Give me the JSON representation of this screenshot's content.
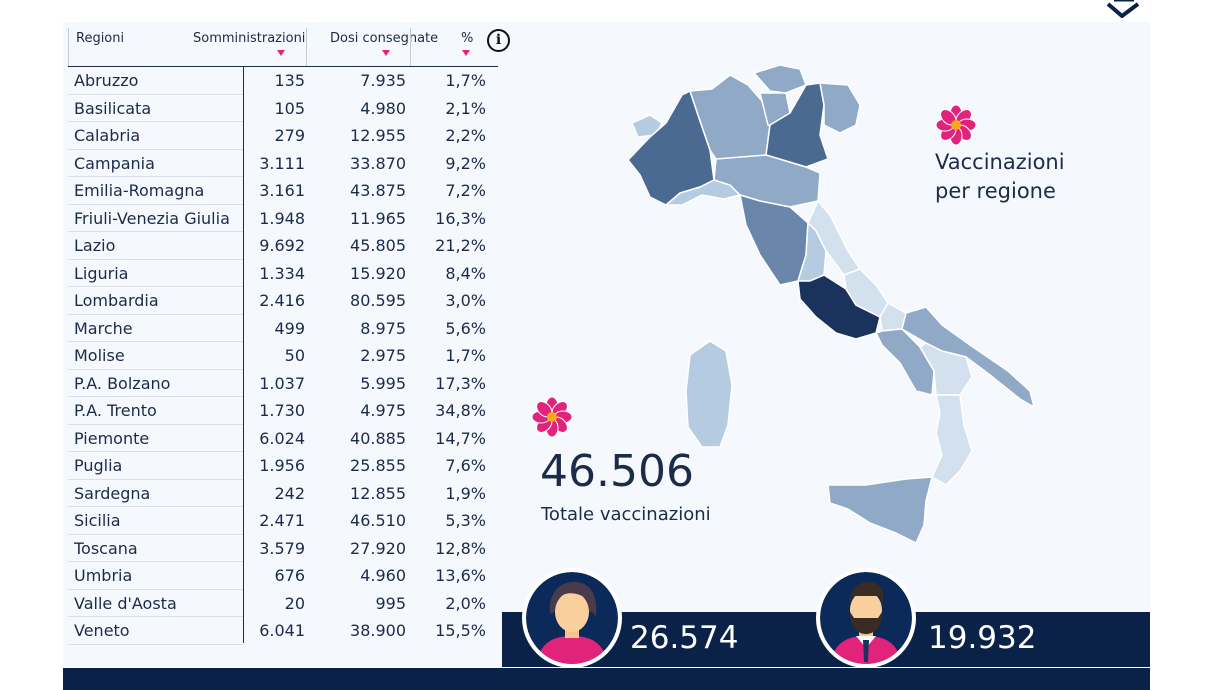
{
  "table": {
    "headers": {
      "region": "Regioni",
      "administrations": "Somministrazioni",
      "delivered": "Dosi consegnate",
      "percent": "%"
    },
    "rows": [
      {
        "region": "Abruzzo",
        "administrations": "135",
        "delivered": "7.935",
        "percent": "1,7%"
      },
      {
        "region": "Basilicata",
        "administrations": "105",
        "delivered": "4.980",
        "percent": "2,1%"
      },
      {
        "region": "Calabria",
        "administrations": "279",
        "delivered": "12.955",
        "percent": "2,2%"
      },
      {
        "region": "Campania",
        "administrations": "3.111",
        "delivered": "33.870",
        "percent": "9,2%"
      },
      {
        "region": "Emilia-Romagna",
        "administrations": "3.161",
        "delivered": "43.875",
        "percent": "7,2%"
      },
      {
        "region": "Friuli-Venezia Giulia",
        "administrations": "1.948",
        "delivered": "11.965",
        "percent": "16,3%"
      },
      {
        "region": "Lazio",
        "administrations": "9.692",
        "delivered": "45.805",
        "percent": "21,2%"
      },
      {
        "region": "Liguria",
        "administrations": "1.334",
        "delivered": "15.920",
        "percent": "8,4%"
      },
      {
        "region": "Lombardia",
        "administrations": "2.416",
        "delivered": "80.595",
        "percent": "3,0%"
      },
      {
        "region": "Marche",
        "administrations": "499",
        "delivered": "8.975",
        "percent": "5,6%"
      },
      {
        "region": "Molise",
        "administrations": "50",
        "delivered": "2.975",
        "percent": "1,7%"
      },
      {
        "region": "P.A. Bolzano",
        "administrations": "1.037",
        "delivered": "5.995",
        "percent": "17,3%"
      },
      {
        "region": "P.A. Trento",
        "administrations": "1.730",
        "delivered": "4.975",
        "percent": "34,8%"
      },
      {
        "region": "Piemonte",
        "administrations": "6.024",
        "delivered": "40.885",
        "percent": "14,7%"
      },
      {
        "region": "Puglia",
        "administrations": "1.956",
        "delivered": "25.855",
        "percent": "7,6%"
      },
      {
        "region": "Sardegna",
        "administrations": "242",
        "delivered": "12.855",
        "percent": "1,9%"
      },
      {
        "region": "Sicilia",
        "administrations": "2.471",
        "delivered": "46.510",
        "percent": "5,3%"
      },
      {
        "region": "Toscana",
        "administrations": "3.579",
        "delivered": "27.920",
        "percent": "12,8%"
      },
      {
        "region": "Umbria",
        "administrations": "676",
        "delivered": "4.960",
        "percent": "13,6%"
      },
      {
        "region": "Valle d'Aosta",
        "administrations": "20",
        "delivered": "995",
        "percent": "2,0%"
      },
      {
        "region": "Veneto",
        "administrations": "6.041",
        "delivered": "38.900",
        "percent": "15,5%"
      }
    ]
  },
  "info_icon": "i",
  "map": {
    "title_line1": "Vaccinazioni",
    "title_line2": "per regione"
  },
  "total": {
    "value": "46.506",
    "label": "Totale vaccinazioni"
  },
  "gender": {
    "female_value": "26.574",
    "male_value": "19.932"
  },
  "icons": [
    "info-icon",
    "flower-icon",
    "female-avatar-icon",
    "male-avatar-icon",
    "sort-arrow-icon",
    "logo-mark-icon"
  ],
  "colors": {
    "navy": "#0b2248",
    "accent_pink": "#e2237b",
    "panel_bg": "#f5f8fc",
    "map_shades": [
      "#d3e1ef",
      "#b5cbe1",
      "#8fa9c6",
      "#6a87ab",
      "#4a6a91",
      "#1a335c"
    ]
  }
}
